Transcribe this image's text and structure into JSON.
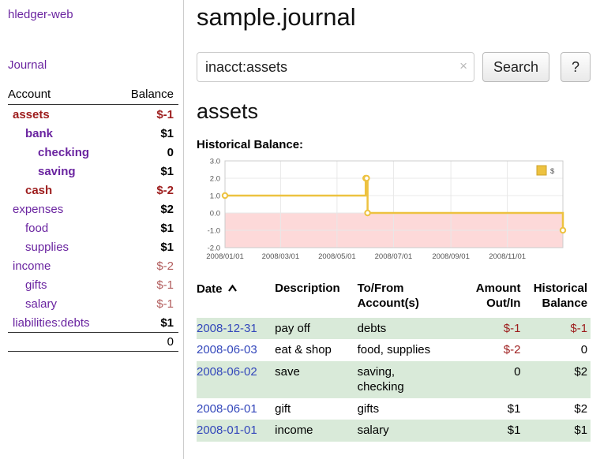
{
  "sidebar": {
    "app_title": "hledger-web",
    "nav": {
      "journal": "Journal"
    },
    "accounts_table": {
      "headers": {
        "account": "Account",
        "balance": "Balance"
      },
      "rows": [
        {
          "name": "assets",
          "depth": 0,
          "balance": "$-1",
          "name_class": "neg strong",
          "bal_class": "neg strong"
        },
        {
          "name": "bank",
          "depth": 1,
          "balance": "$1",
          "name_class": "acct strong",
          "bal_class": "strong"
        },
        {
          "name": "checking",
          "depth": 2,
          "balance": "0",
          "name_class": "acct strong",
          "bal_class": "strong"
        },
        {
          "name": "saving",
          "depth": 2,
          "balance": "$1",
          "name_class": "acct strong",
          "bal_class": "strong"
        },
        {
          "name": "cash",
          "depth": 1,
          "balance": "$-2",
          "name_class": "neg strong",
          "bal_class": "neg strong"
        },
        {
          "name": "expenses",
          "depth": 0,
          "balance": "$2",
          "name_class": "acct",
          "bal_class": "strong"
        },
        {
          "name": "food",
          "depth": 1,
          "balance": "$1",
          "name_class": "acct",
          "bal_class": "strong"
        },
        {
          "name": "supplies",
          "depth": 1,
          "balance": "$1",
          "name_class": "acct",
          "bal_class": "strong"
        },
        {
          "name": "income",
          "depth": 0,
          "balance": "$-2",
          "name_class": "acct",
          "bal_class": "negsoft"
        },
        {
          "name": "gifts",
          "depth": 1,
          "balance": "$-1",
          "name_class": "acct",
          "bal_class": "negsoft"
        },
        {
          "name": "salary",
          "depth": 1,
          "balance": "$-1",
          "name_class": "acct",
          "bal_class": "negsoft"
        },
        {
          "name": "liabilities:debts",
          "depth": 0,
          "balance": "$1",
          "name_class": "acct",
          "bal_class": "strong"
        }
      ],
      "total": "0"
    }
  },
  "main": {
    "page_title": "sample.journal",
    "search": {
      "value": "inacct:assets",
      "clear": "×",
      "search_button": "Search",
      "help_button": "?"
    },
    "account_heading": "assets",
    "chart_heading": "Historical Balance:"
  },
  "chart_data": {
    "type": "line",
    "step": true,
    "title": "Historical Balance:",
    "series": [
      {
        "name": "$",
        "points": [
          [
            "2008-01-01",
            1
          ],
          [
            "2008-06-01",
            2
          ],
          [
            "2008-06-02",
            2
          ],
          [
            "2008-06-03",
            0
          ],
          [
            "2008-12-31",
            -1
          ]
        ]
      }
    ],
    "ylim": [
      -2,
      3
    ],
    "yticks": [
      3,
      2,
      1,
      0,
      -1,
      -2
    ],
    "xrange": [
      "2008-01-01",
      "2008-12-31"
    ],
    "xticks": [
      "2008-01-01",
      "2008-03-01",
      "2008-05-01",
      "2008-07-01",
      "2008-09-01",
      "2008-11-01"
    ],
    "xtick_labels": [
      "2008/01/01",
      "2008/03/01",
      "2008/05/01",
      "2008/07/01",
      "2008/09/01",
      "2008/11/01"
    ],
    "legend_position": "top-right",
    "grid": true,
    "colors": {
      "line": "#edc240",
      "line_border": "#cda32c",
      "below_zero": "#fdd9d9",
      "grid": "#e8e8e8",
      "border": "#cccccc"
    }
  },
  "register": {
    "headers": {
      "date": "Date",
      "description": "Description",
      "accounts": "To/From Account(s)",
      "amount": "Amount Out/In",
      "balance": "Historical Balance"
    },
    "rows": [
      {
        "date": "2008-12-31",
        "description": "pay off",
        "accounts": "debts",
        "amount": "$-1",
        "amount_neg": true,
        "balance": "$-1",
        "balance_neg": true,
        "shaded": true
      },
      {
        "date": "2008-06-03",
        "description": "eat & shop",
        "accounts": "food, supplies",
        "amount": "$-2",
        "amount_neg": true,
        "balance": "0",
        "balance_neg": false,
        "shaded": false
      },
      {
        "date": "2008-06-02",
        "description": "save",
        "accounts": "saving,\nchecking",
        "amount": "0",
        "amount_neg": false,
        "balance": "$2",
        "balance_neg": false,
        "shaded": true
      },
      {
        "date": "2008-06-01",
        "description": "gift",
        "accounts": "gifts",
        "amount": "$1",
        "amount_neg": false,
        "balance": "$2",
        "balance_neg": false,
        "shaded": false
      },
      {
        "date": "2008-01-01",
        "description": "income",
        "accounts": "salary",
        "amount": "$1",
        "amount_neg": false,
        "balance": "$1",
        "balance_neg": false,
        "shaded": true
      }
    ]
  }
}
